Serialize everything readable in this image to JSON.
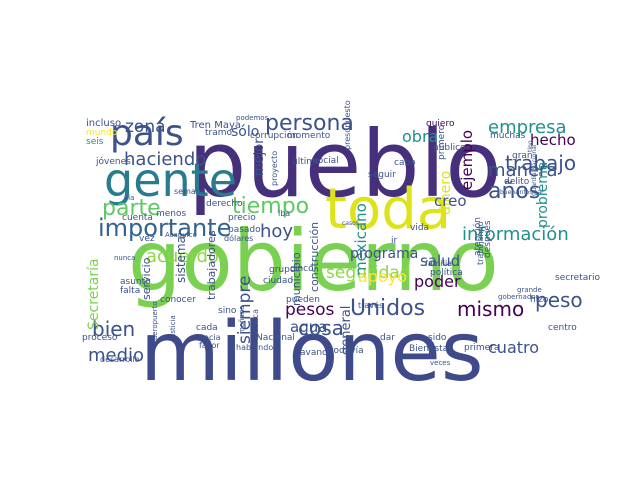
{
  "words": [
    {
      "text": "pueblo",
      "color": "#46307b"
    },
    {
      "text": "gobierno",
      "color": "#7ad151"
    },
    {
      "text": "millones",
      "color": "#3e4a89"
    },
    {
      "text": "toda",
      "color": "#dde318"
    },
    {
      "text": "gente",
      "color": "#287c8e"
    },
    {
      "text": "país",
      "color": "#3b528b"
    },
    {
      "text": "persona",
      "color": "#3b528b"
    },
    {
      "text": "tiempo",
      "color": "#5ec962"
    },
    {
      "text": "importante",
      "color": "#33638d"
    },
    {
      "text": "parte",
      "color": "#5ec962"
    },
    {
      "text": "haciendo",
      "color": "#3b528b"
    },
    {
      "text": "Unidos",
      "color": "#3b528b"
    },
    {
      "text": "mismo",
      "color": "#440154"
    },
    {
      "text": "años",
      "color": "#3b528b"
    },
    {
      "text": "información",
      "color": "#21918c"
    },
    {
      "text": "trabajo",
      "color": "#3b528b"
    },
    {
      "text": "manera",
      "color": "#3b528b"
    },
    {
      "text": "empresa",
      "color": "#21918c"
    },
    {
      "text": "hoy",
      "color": "#3b528b"
    },
    {
      "text": "acuerdo",
      "color": "#8fd744"
    },
    {
      "text": "bien",
      "color": "#3b528b"
    },
    {
      "text": "medio",
      "color": "#3b528b"
    },
    {
      "text": "cosa",
      "color": "#3b528b"
    },
    {
      "text": "peso",
      "color": "#3b528b"
    },
    {
      "text": "seguridad",
      "color": "#8fd744"
    },
    {
      "text": "siempre",
      "color": "#3b528b"
    },
    {
      "text": "mexicano",
      "color": "#21918c"
    },
    {
      "text": "obra",
      "color": "#21918c"
    },
    {
      "text": "dinero",
      "color": "#dde318"
    },
    {
      "text": "ejemplo",
      "color": "#440154"
    },
    {
      "text": "problema",
      "color": "#21918c"
    },
    {
      "text": "hecho",
      "color": "#440154"
    },
    {
      "text": "creo",
      "color": "#3b528b"
    },
    {
      "text": "poder",
      "color": "#440154"
    },
    {
      "text": "apoyo",
      "color": "#fde725"
    },
    {
      "text": "pesos",
      "color": "#440154"
    },
    {
      "text": "agua",
      "color": "#3b528b"
    },
    {
      "text": "salud",
      "color": "#3b528b"
    },
    {
      "text": "programa",
      "color": "#3b528b"
    },
    {
      "text": "cuatro",
      "color": "#3b528b"
    },
    {
      "text": "zona",
      "color": "#3b528b"
    },
    {
      "text": "sólo",
      "color": "#3b528b"
    },
    {
      "text": "mejor",
      "color": "#3b528b"
    },
    {
      "text": "Secretaría",
      "color": "#7ad151"
    },
    {
      "text": "general",
      "color": "#3b528b"
    },
    {
      "text": "sistema",
      "color": "#3b528b"
    },
    {
      "text": "trabajadores",
      "color": "#3b528b"
    },
    {
      "text": "municipio",
      "color": "#3b528b"
    },
    {
      "text": "construcción",
      "color": "#3b528b"
    },
    {
      "text": "servicio",
      "color": "#3b528b"
    },
    {
      "text": "Tren Maya",
      "color": "#3b528b"
    },
    {
      "text": "incluso",
      "color": "#3b528b"
    },
    {
      "text": "mundo",
      "color": "#fde725"
    },
    {
      "text": "tramo",
      "color": "#3b528b"
    },
    {
      "text": "corrupción",
      "color": "#3b528b"
    },
    {
      "text": "momento",
      "color": "#3b528b"
    },
    {
      "text": "quiero",
      "color": "#440154"
    },
    {
      "text": "muchas",
      "color": "#3b528b"
    },
    {
      "text": "seis",
      "color": "#21918c"
    },
    {
      "text": "jóvenes",
      "color": "#3b528b"
    },
    {
      "text": "derecho",
      "color": "#3b528b"
    },
    {
      "text": "cuenta",
      "color": "#3b528b"
    },
    {
      "text": "menos",
      "color": "#3b528b"
    },
    {
      "text": "precio",
      "color": "#3b528b"
    },
    {
      "text": "iba",
      "color": "#3b528b"
    },
    {
      "text": "pasado",
      "color": "#3b528b"
    },
    {
      "text": "dólares",
      "color": "#3b528b"
    },
    {
      "text": "vez",
      "color": "#3b528b"
    },
    {
      "text": "nunca",
      "color": "#3b528b"
    },
    {
      "text": "asunto",
      "color": "#3b528b"
    },
    {
      "text": "falta",
      "color": "#3b528b"
    },
    {
      "text": "conocer",
      "color": "#3b528b"
    },
    {
      "text": "cinco",
      "color": "#3b528b"
    },
    {
      "text": "grupo",
      "color": "#3b528b"
    },
    {
      "text": "ciudad",
      "color": "#3b528b"
    },
    {
      "text": "pueden",
      "color": "#3b528b"
    },
    {
      "text": "través",
      "color": "#3b528b"
    },
    {
      "text": "Nacional",
      "color": "#3b528b"
    },
    {
      "text": "hablando",
      "color": "#3b528b"
    },
    {
      "text": "pública",
      "color": "#3b528b"
    },
    {
      "text": "avance",
      "color": "#3b528b"
    },
    {
      "text": "todavía",
      "color": "#3b528b"
    },
    {
      "text": "dar",
      "color": "#3b528b"
    },
    {
      "text": "sido",
      "color": "#3b528b"
    },
    {
      "text": "Bienestar",
      "color": "#3b528b"
    },
    {
      "text": "primera",
      "color": "#3b528b"
    },
    {
      "text": "veces",
      "color": "#3b528b"
    },
    {
      "text": "centro",
      "color": "#3b528b"
    },
    {
      "text": "hizo",
      "color": "#3b528b"
    },
    {
      "text": "secretario",
      "color": "#3b528b"
    },
    {
      "text": "trabajando",
      "color": "#3b528b"
    },
    {
      "text": "después",
      "color": "#3b528b"
    },
    {
      "text": "atención",
      "color": "#3b528b"
    },
    {
      "text": "política",
      "color": "#3b528b"
    },
    {
      "text": "familia",
      "color": "#3b528b"
    },
    {
      "text": "vida",
      "color": "#3b528b"
    },
    {
      "text": "ir",
      "color": "#3b528b"
    },
    {
      "text": "seguir",
      "color": "#3b528b"
    },
    {
      "text": "presupuesto",
      "color": "#3b528b"
    },
    {
      "text": "social",
      "color": "#3b528b"
    },
    {
      "text": "último",
      "color": "#3b528b"
    },
    {
      "text": "proyecto",
      "color": "#3b528b"
    },
    {
      "text": "cabo",
      "color": "#3b528b"
    },
    {
      "text": "público",
      "color": "#3b528b"
    },
    {
      "text": "primero",
      "color": "#3b528b"
    },
    {
      "text": "delito",
      "color": "#3b528b"
    },
    {
      "text": "gran",
      "color": "#3b528b"
    },
    {
      "text": "proceso",
      "color": "#3b528b"
    },
    {
      "text": "desarrollo",
      "color": "#3b528b"
    },
    {
      "text": "aeropuerto",
      "color": "#3b528b"
    },
    {
      "text": "justicia",
      "color": "#3b528b"
    },
    {
      "text": "hacia",
      "color": "#3b528b"
    },
    {
      "text": "favor",
      "color": "#3b528b"
    },
    {
      "text": "cada",
      "color": "#3b528b"
    },
    {
      "text": "sino",
      "color": "#3b528b"
    },
    {
      "text": "semana",
      "color": "#3b528b"
    },
    {
      "text": "podemos",
      "color": "#3b528b"
    },
    {
      "text": "Acapulco",
      "color": "#3b528b"
    },
    {
      "text": "mañana",
      "color": "#3b528b"
    },
    {
      "text": "buena",
      "color": "#3b528b"
    },
    {
      "text": "informar",
      "color": "#3b528b"
    },
    {
      "text": "gobernador",
      "color": "#3b528b"
    },
    {
      "text": "grande",
      "color": "#3b528b"
    },
    {
      "text": "Guardia Nacional",
      "color": "#3b528b"
    },
    {
      "text": "tipo",
      "color": "#3b528b"
    },
    {
      "text": "vía",
      "color": "#3b528b"
    },
    {
      "text": "casos",
      "color": "#3b528b"
    }
  ]
}
